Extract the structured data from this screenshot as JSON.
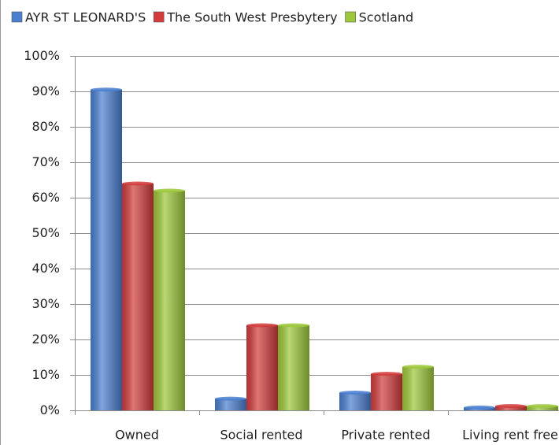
{
  "chart_data": {
    "type": "bar",
    "categories": [
      "Owned",
      "Social rented",
      "Private rented",
      "Living rent free"
    ],
    "series": [
      {
        "name": "AYR ST LEONARD'S",
        "color": "#4a7fd0",
        "values": [
          90.5,
          3.3,
          5,
          0.8
        ]
      },
      {
        "name": "The South West Presbytery",
        "color": "#d23c3c",
        "values": [
          64,
          24,
          10.3,
          1.2
        ]
      },
      {
        "name": "Scotland",
        "color": "#9cc83a",
        "values": [
          62,
          24,
          12.3,
          1.2
        ]
      }
    ],
    "ylim": [
      0,
      100
    ],
    "yticks": [
      {
        "value": 0,
        "label": "0%"
      },
      {
        "value": 10,
        "label": "10%"
      },
      {
        "value": 20,
        "label": "20%"
      },
      {
        "value": 30,
        "label": "30%"
      },
      {
        "value": 40,
        "label": "40%"
      },
      {
        "value": 50,
        "label": "50%"
      },
      {
        "value": 60,
        "label": "60%"
      },
      {
        "value": 70,
        "label": "70%"
      },
      {
        "value": 80,
        "label": "80%"
      },
      {
        "value": 90,
        "label": "90%"
      },
      {
        "value": 100,
        "label": "100%"
      }
    ],
    "grid": true,
    "legend": "top"
  }
}
